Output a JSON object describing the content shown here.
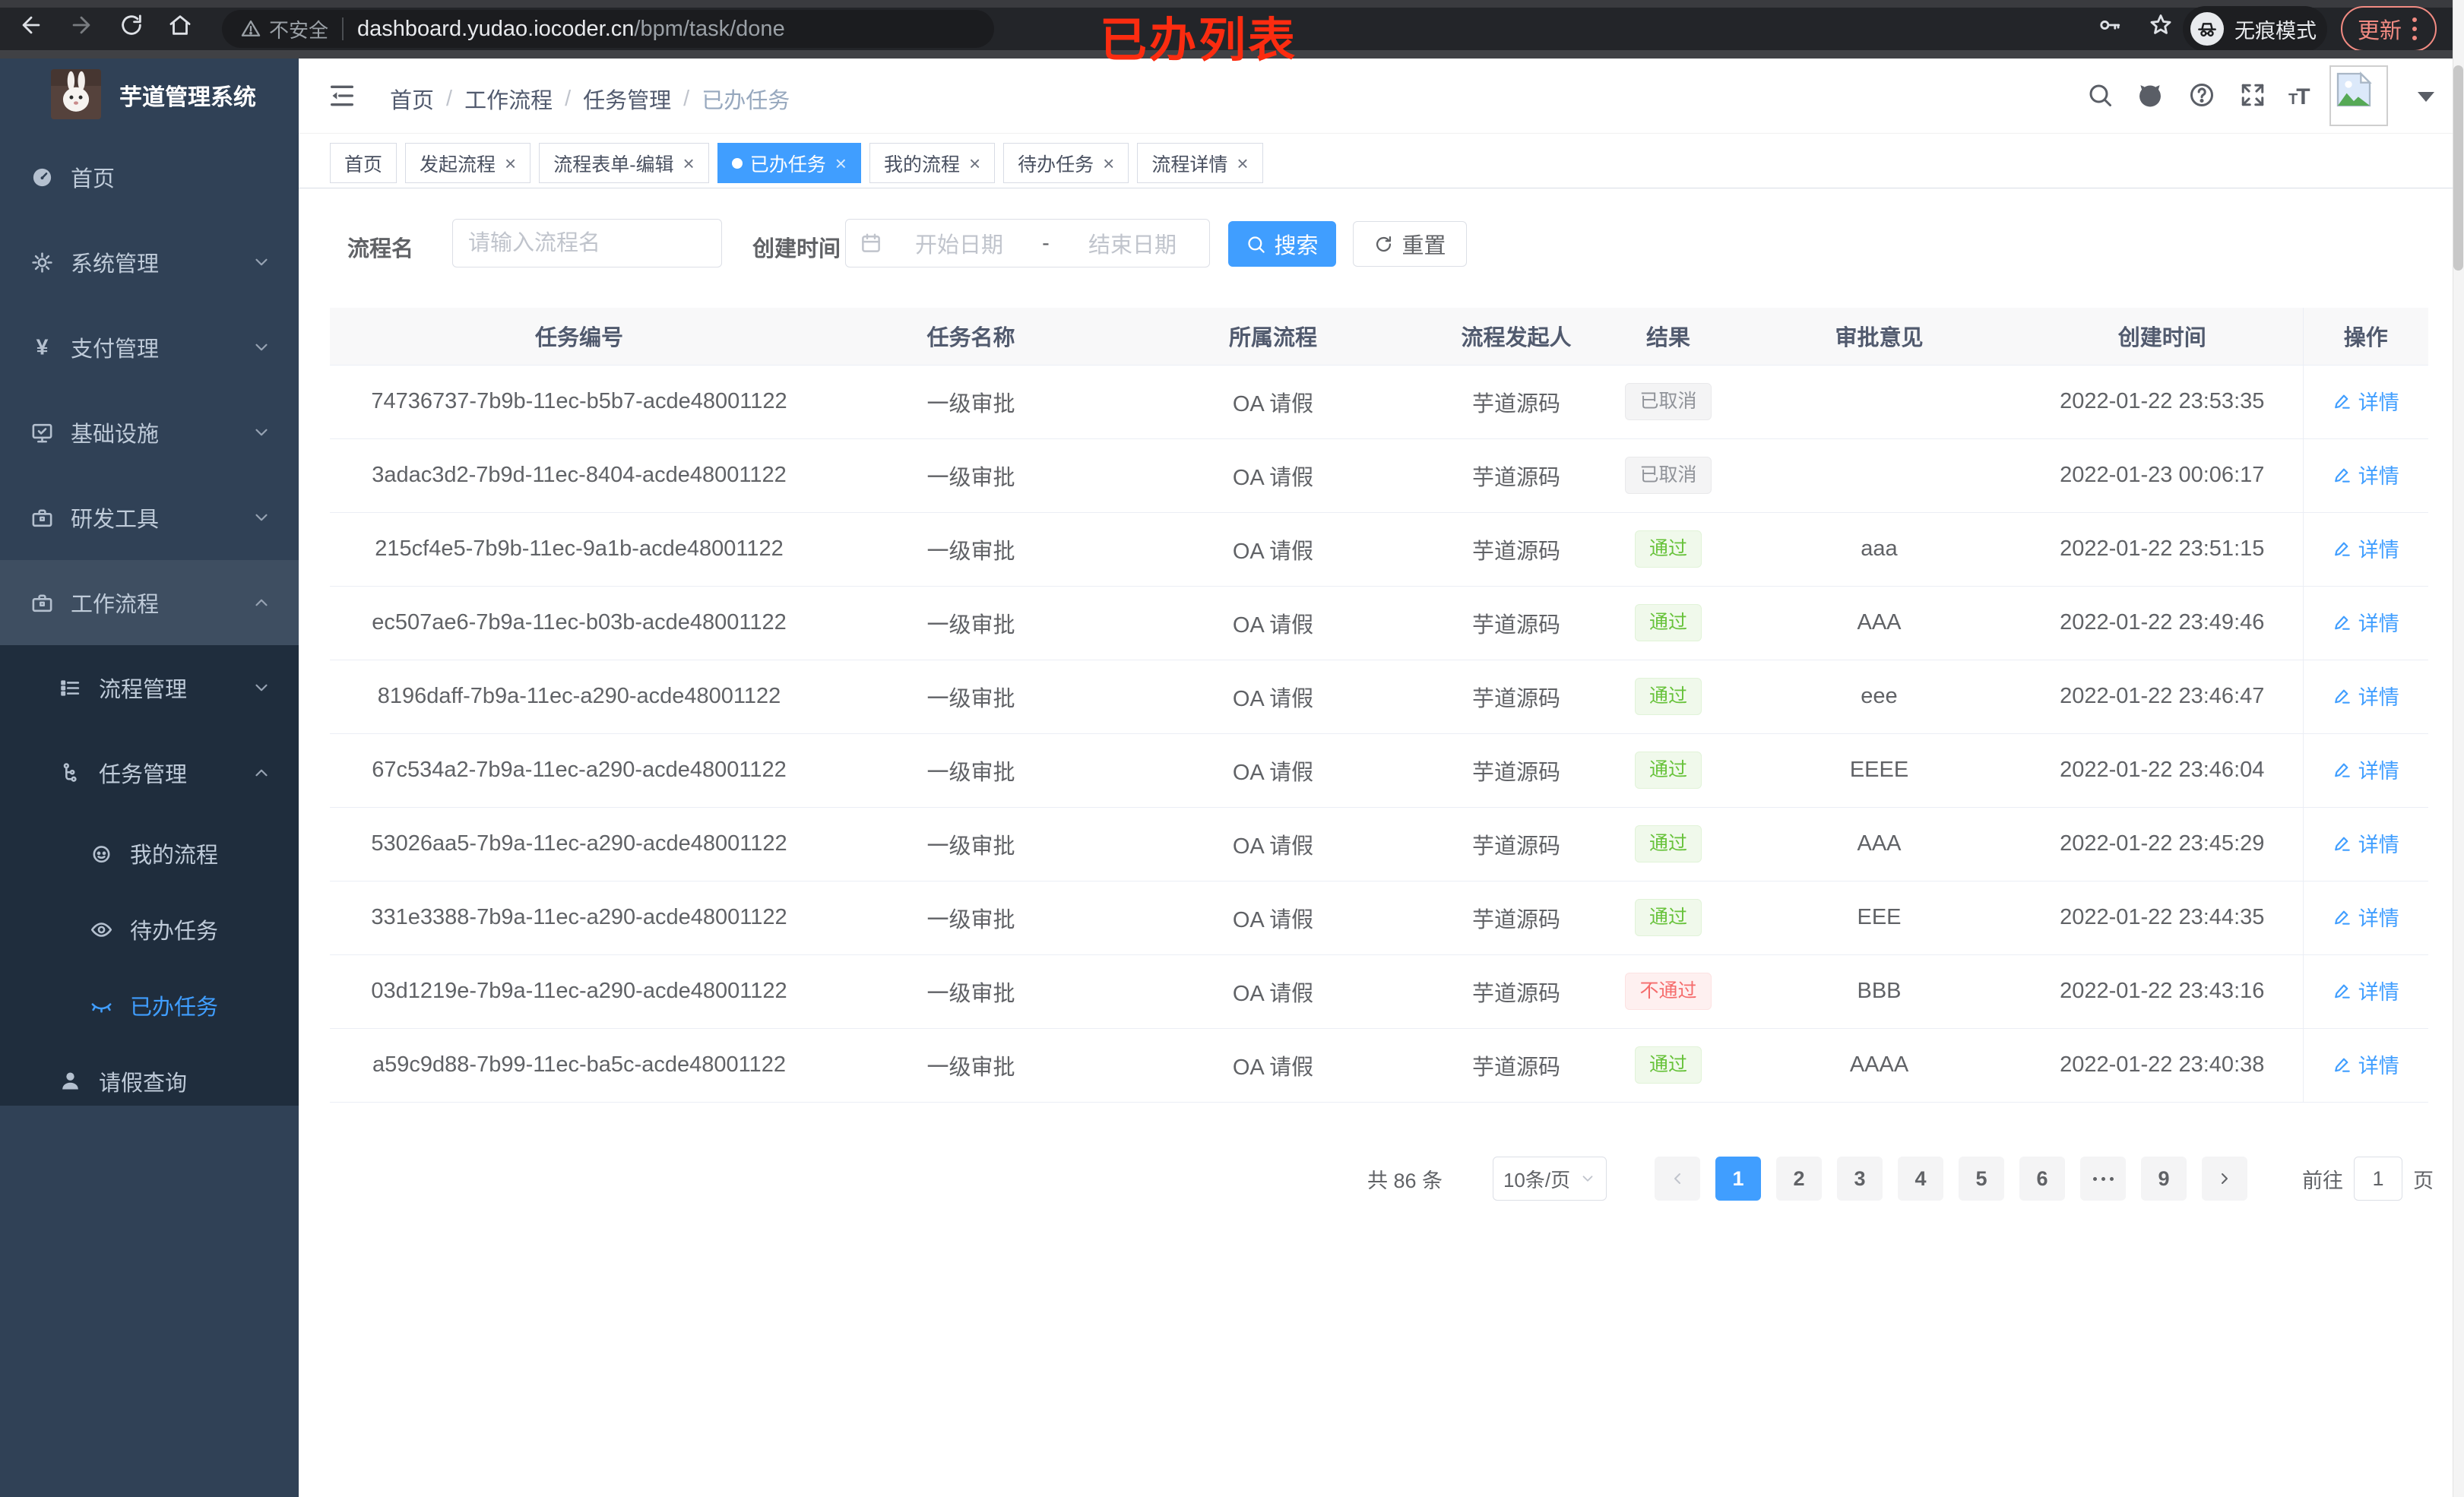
{
  "browser": {
    "security_label": "不安全",
    "url_host": "dashboard.yudao.iocoder.cn",
    "url_path": "/bpm/task/done",
    "incognito_label": "无痕模式",
    "update_label": "更新"
  },
  "annotation": {
    "text": "已办列表",
    "color": "#FB2C10"
  },
  "sidebar": {
    "logo_title": "芋道管理系统",
    "items": [
      {
        "key": "home",
        "label": "首页",
        "icon": "dashboard-icon",
        "level": 1
      },
      {
        "key": "system",
        "label": "系统管理",
        "icon": "gear-icon",
        "level": 1,
        "chevron": "down"
      },
      {
        "key": "payment",
        "label": "支付管理",
        "icon": "yen-icon",
        "level": 1,
        "chevron": "down"
      },
      {
        "key": "infrastructure",
        "label": "基础设施",
        "icon": "monitor-icon",
        "level": 1,
        "chevron": "down"
      },
      {
        "key": "devtools",
        "label": "研发工具",
        "icon": "toolbox-icon",
        "level": 1,
        "chevron": "down"
      },
      {
        "key": "workflow",
        "label": "工作流程",
        "icon": "toolbox-icon",
        "level": 1,
        "chevron": "up",
        "open": true
      },
      {
        "key": "process-management",
        "label": "流程管理",
        "icon": "list-icon",
        "level": 2,
        "chevron": "down"
      },
      {
        "key": "task-management",
        "label": "任务管理",
        "icon": "tree-icon",
        "level": 2,
        "chevron": "up"
      },
      {
        "key": "my-process",
        "label": "我的流程",
        "icon": "robot-icon",
        "level": 3
      },
      {
        "key": "todo-tasks",
        "label": "待办任务",
        "icon": "eye-icon",
        "level": 3
      },
      {
        "key": "done-tasks",
        "label": "已办任务",
        "icon": "eye-closed-icon",
        "level": 3,
        "active": true
      },
      {
        "key": "leave-query",
        "label": "请假查询",
        "icon": "user-icon",
        "level": 2
      }
    ]
  },
  "header": {
    "breadcrumb": [
      "首页",
      "工作流程",
      "任务管理",
      "已办任务"
    ]
  },
  "tabs": [
    {
      "key": "home",
      "label": "首页",
      "closable": false
    },
    {
      "key": "start-process",
      "label": "发起流程",
      "closable": true
    },
    {
      "key": "process-form-edit",
      "label": "流程表单-编辑",
      "closable": true
    },
    {
      "key": "done-tasks",
      "label": "已办任务",
      "closable": true,
      "active": true
    },
    {
      "key": "my-process",
      "label": "我的流程",
      "closable": true
    },
    {
      "key": "todo-tasks",
      "label": "待办任务",
      "closable": true
    },
    {
      "key": "process-detail",
      "label": "流程详情",
      "closable": true
    }
  ],
  "search": {
    "name_label": "流程名",
    "name_placeholder": "请输入流程名",
    "time_label": "创建时间",
    "start_placeholder": "开始日期",
    "separator": "-",
    "end_placeholder": "结束日期",
    "search_label": "搜索",
    "reset_label": "重置"
  },
  "table": {
    "columns": [
      "任务编号",
      "任务名称",
      "所属流程",
      "流程发起人",
      "结果",
      "审批意见",
      "创建时间",
      "操作"
    ],
    "action_label": "详情",
    "rows": [
      {
        "id": "74736737-7b9b-11ec-b5b7-acde48001122",
        "name": "一级审批",
        "flow": "OA 请假",
        "starter": "芋道源码",
        "result": {
          "label": "已取消",
          "type": "info"
        },
        "comment": "",
        "time": "2022-01-22 23:53:35"
      },
      {
        "id": "3adac3d2-7b9d-11ec-8404-acde48001122",
        "name": "一级审批",
        "flow": "OA 请假",
        "starter": "芋道源码",
        "result": {
          "label": "已取消",
          "type": "info"
        },
        "comment": "",
        "time": "2022-01-23 00:06:17"
      },
      {
        "id": "215cf4e5-7b9b-11ec-9a1b-acde48001122",
        "name": "一级审批",
        "flow": "OA 请假",
        "starter": "芋道源码",
        "result": {
          "label": "通过",
          "type": "success"
        },
        "comment": "aaa",
        "time": "2022-01-22 23:51:15"
      },
      {
        "id": "ec507ae6-7b9a-11ec-b03b-acde48001122",
        "name": "一级审批",
        "flow": "OA 请假",
        "starter": "芋道源码",
        "result": {
          "label": "通过",
          "type": "success"
        },
        "comment": "AAA",
        "time": "2022-01-22 23:49:46"
      },
      {
        "id": "8196daff-7b9a-11ec-a290-acde48001122",
        "name": "一级审批",
        "flow": "OA 请假",
        "starter": "芋道源码",
        "result": {
          "label": "通过",
          "type": "success"
        },
        "comment": "eee",
        "time": "2022-01-22 23:46:47"
      },
      {
        "id": "67c534a2-7b9a-11ec-a290-acde48001122",
        "name": "一级审批",
        "flow": "OA 请假",
        "starter": "芋道源码",
        "result": {
          "label": "通过",
          "type": "success"
        },
        "comment": "EEEE",
        "time": "2022-01-22 23:46:04"
      },
      {
        "id": "53026aa5-7b9a-11ec-a290-acde48001122",
        "name": "一级审批",
        "flow": "OA 请假",
        "starter": "芋道源码",
        "result": {
          "label": "通过",
          "type": "success"
        },
        "comment": "AAA",
        "time": "2022-01-22 23:45:29"
      },
      {
        "id": "331e3388-7b9a-11ec-a290-acde48001122",
        "name": "一级审批",
        "flow": "OA 请假",
        "starter": "芋道源码",
        "result": {
          "label": "通过",
          "type": "success"
        },
        "comment": "EEE",
        "time": "2022-01-22 23:44:35"
      },
      {
        "id": "03d1219e-7b9a-11ec-a290-acde48001122",
        "name": "一级审批",
        "flow": "OA 请假",
        "starter": "芋道源码",
        "result": {
          "label": "不通过",
          "type": "danger"
        },
        "comment": "BBB",
        "time": "2022-01-22 23:43:16"
      },
      {
        "id": "a59c9d88-7b99-11ec-ba5c-acde48001122",
        "name": "一级审批",
        "flow": "OA 请假",
        "starter": "芋道源码",
        "result": {
          "label": "通过",
          "type": "success"
        },
        "comment": "AAAA",
        "time": "2022-01-22 23:40:38"
      }
    ]
  },
  "pagination": {
    "total_label": "共 86 条",
    "page_size_label": "10条/页",
    "pages": [
      "1",
      "2",
      "3",
      "4",
      "5",
      "6",
      "…",
      "9"
    ],
    "active_page": "1",
    "goto_label": "前往",
    "goto_value": "1",
    "page_unit": "页"
  },
  "colors": {
    "accent": "#409EFF",
    "success_text": "#67C23A",
    "success_bg": "#F0F9EB",
    "danger_text": "#F56C6C",
    "danger_bg": "#FEF0F0",
    "info_text": "#909399",
    "info_bg": "#F4F4F5",
    "sidebar_bg": "#304156",
    "submenu_bg": "#1F2D3D"
  }
}
